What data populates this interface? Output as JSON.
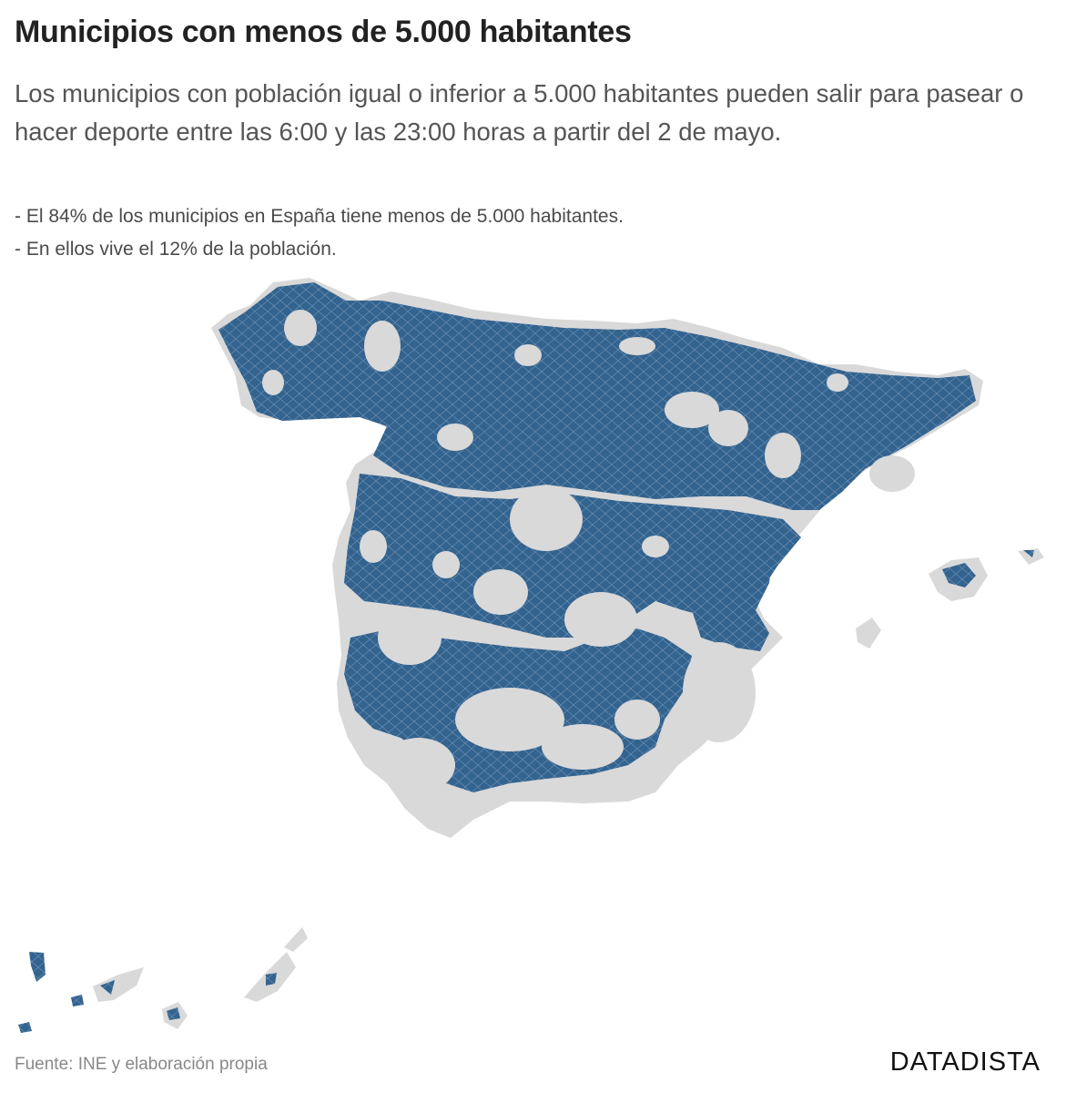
{
  "title": "Municipios con menos de 5.000 habitantes",
  "subtitle": "Los municipios con población igual o inferior a 5.000 habitantes pueden salir para pasear o hacer deporte entre las 6:00 y las 23:00 horas a partir del 2 de mayo.",
  "notes": [
    "- El 84% de los municipios en España tiene menos de 5.000 habitantes.",
    "- En ellos vive el 12% de la población."
  ],
  "source": "Fuente: INE y elaboración propia",
  "brand": "DATADISTA",
  "colors": {
    "small_municipality": "#33638f",
    "other_municipality": "#d9d9d9",
    "border": "#6f94b5"
  }
}
